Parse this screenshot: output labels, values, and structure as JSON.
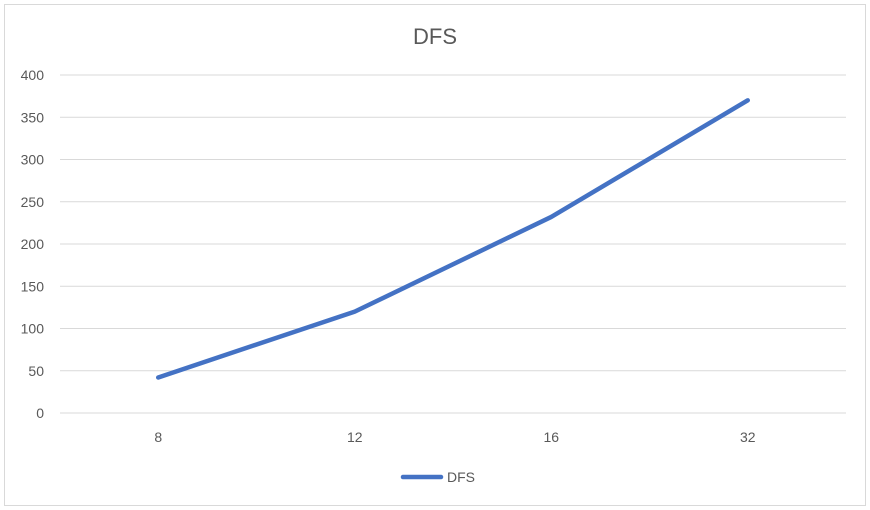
{
  "chart_data": {
    "type": "line",
    "title": "DFS",
    "categories": [
      "8",
      "12",
      "16",
      "32"
    ],
    "series": [
      {
        "name": "DFS",
        "values": [
          42,
          120,
          232,
          370
        ],
        "color": "#4472c4"
      }
    ],
    "ylim": [
      0,
      400
    ],
    "yticks": [
      0,
      50,
      100,
      150,
      200,
      250,
      300,
      350,
      400
    ],
    "grid": true,
    "legend": "bottom"
  }
}
